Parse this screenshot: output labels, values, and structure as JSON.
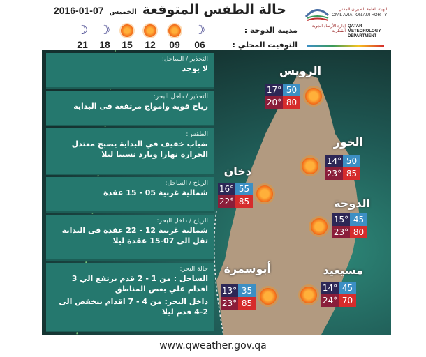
{
  "header": {
    "title": "حالة الطقس المتوقعة",
    "day": "الخميس",
    "date": "2016-01-07",
    "city_label": "مدينة الدوحة :",
    "time_label": "التوقيت المحلي :",
    "forecast": [
      {
        "hour": "06",
        "icon": "moon-icon"
      },
      {
        "hour": "09",
        "icon": "sun-icon"
      },
      {
        "hour": "12",
        "icon": "sun-icon"
      },
      {
        "hour": "15",
        "icon": "sun-icon"
      },
      {
        "hour": "18",
        "icon": "moon-icon"
      },
      {
        "hour": "21",
        "icon": "moon-icon"
      }
    ]
  },
  "logo": {
    "caa_ar": "الهيئة العامة للطيران المدني",
    "caa_en": "CIVIL AVIATION AUTHORITY",
    "qmd_ar": "إدارة الأرصاد الجوية القطرية",
    "qmd_en": "QATAR METEOROLOGY DEPARTMENT"
  },
  "panels": [
    {
      "head": "التحذير / الساحل:",
      "text": "لا يوجد"
    },
    {
      "head": "التحذير / داخل البحر:",
      "text": "رياح قوية وامواج مرتفعة فى البداية"
    },
    {
      "head": "الطقس:",
      "text": "ضباب خفيف في البداية يصبح معتدل الحرارة نهارا وبارد نسبيا ليلا"
    },
    {
      "head": "الرياح / الساحل:",
      "text": "شمالية غربية 05 - 15 عقدة"
    },
    {
      "head": "الرياح / داخل البحر:",
      "text": "شمالية غربية 12 - 22 عقدة فى البداية تقل الى 07-15 عقدة ليلا"
    },
    {
      "head": "حالة البحر:",
      "text": "الساحل : من 1 - 2 قدم يرتفع الي 3 اقدام علي بعض المناطق",
      "text2": "داخل البحر: من 4 - 7 اقدام ينخفض الى 2-4 قدم ليلا"
    }
  ],
  "cities": [
    {
      "name": "الرويس",
      "min": "17°",
      "min_hum": "50",
      "max": "20°",
      "max_hum": "80"
    },
    {
      "name": "الخور",
      "min": "14°",
      "min_hum": "50",
      "max": "23°",
      "max_hum": "85"
    },
    {
      "name": "دخان",
      "min": "16°",
      "min_hum": "55",
      "max": "22°",
      "max_hum": "85"
    },
    {
      "name": "الدوحة",
      "min": "15°",
      "min_hum": "45",
      "max": "23°",
      "max_hum": "80"
    },
    {
      "name": "أبوسمرة",
      "min": "13°",
      "min_hum": "35",
      "max": "23°",
      "max_hum": "85"
    },
    {
      "name": "مسيعيد",
      "min": "14°",
      "min_hum": "45",
      "max": "24°",
      "max_hum": "70"
    }
  ],
  "footer": {
    "url": "www.qweather.gov.qa"
  },
  "colors": {
    "panel": "#25786e",
    "min_temp": "#2d2756",
    "min_hum": "#3c8fc4",
    "max_temp": "#8a1e3a",
    "max_hum": "#d62c2c"
  }
}
